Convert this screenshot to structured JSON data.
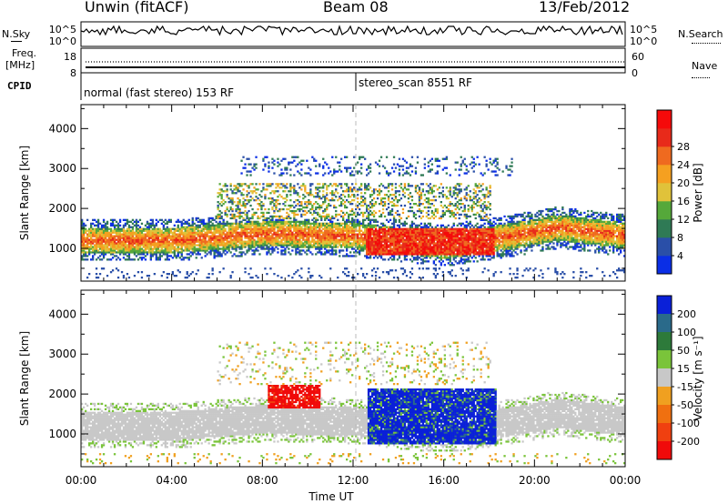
{
  "header": {
    "title": "Unwin (fitACF)",
    "beam": "Beam 08",
    "date": "13/Feb/2012"
  },
  "strips": {
    "nsky_label": "N.Sky",
    "nsky_ticks": [
      "10^5",
      "10^0"
    ],
    "nsearch_label": "N.Search",
    "nsearch_ticks": [
      "10^5",
      "10^0"
    ],
    "freq_label_1": "Freq.",
    "freq_label_2": "[MHz]",
    "freq_ticks": [
      "18",
      "8"
    ],
    "nave_label": "Nave",
    "nave_ticks": [
      "60",
      "0"
    ],
    "cpid_label": "CPID",
    "cpid_segments": [
      "normal (fast stereo) 153 RF",
      "stereo_scan 8551 RF"
    ]
  },
  "chart_data": [
    {
      "type": "heatmap",
      "panel": "power",
      "ylabel": "Slant Range [km]",
      "yticks": [
        "1000",
        "2000",
        "3000",
        "4000"
      ],
      "ylim": [
        180,
        4600
      ],
      "xlim": [
        0,
        24
      ],
      "colorbar_label": "Power [dB]",
      "colorbar_ticks": [
        "4",
        "8",
        "12",
        "16",
        "20",
        "24",
        "28"
      ],
      "colorbar_colors": [
        "#0a2ee6",
        "#2a4fa8",
        "#2f7a55",
        "#55a83a",
        "#e0c23a",
        "#f5a020",
        "#ef6a1f",
        "#e82a1a",
        "#f50a0a"
      ],
      "features": [
        {
          "name": "main echo band",
          "t_start": 0,
          "t_end": 24,
          "range_center": [
            1200,
            1000,
            1500,
            1400,
            1250
          ],
          "dominant": "green-orange"
        },
        {
          "name": "strong echoes",
          "t_start": 12.5,
          "t_end": 18.2,
          "range": [
            800,
            1500
          ],
          "dominant": "red"
        }
      ]
    },
    {
      "type": "heatmap",
      "panel": "velocity",
      "ylabel": "Slant Range [km]",
      "yticks": [
        "1000",
        "2000",
        "3000",
        "4000"
      ],
      "ylim": [
        180,
        4600
      ],
      "xlim": [
        0,
        24
      ],
      "xlabel": "Time UT",
      "xticks": [
        "00:00",
        "04:00",
        "08:00",
        "12:00",
        "16:00",
        "20:00",
        "00:00"
      ],
      "colorbar_label": "Velocity [m s⁻¹]",
      "colorbar_ticks": [
        "200",
        "100",
        "50",
        "15",
        "-15",
        "-50",
        "-100",
        "-200"
      ],
      "colorbar_colors": [
        "#0a20d8",
        "#2a6a8a",
        "#2d7a3a",
        "#7ac43a",
        "#c8c8c8",
        "#f0a020",
        "#f07010",
        "#f04010",
        "#f00a0a"
      ],
      "features": [
        {
          "name": "ground scatter",
          "color": "gray"
        },
        {
          "name": "receding flow",
          "t_start": 8.2,
          "t_end": 10.5,
          "range": [
            1600,
            2200
          ],
          "color": "red"
        },
        {
          "name": "approaching flow",
          "t_start": 12.6,
          "t_end": 18.3,
          "range": [
            700,
            2100
          ],
          "color": "blue"
        }
      ]
    }
  ]
}
